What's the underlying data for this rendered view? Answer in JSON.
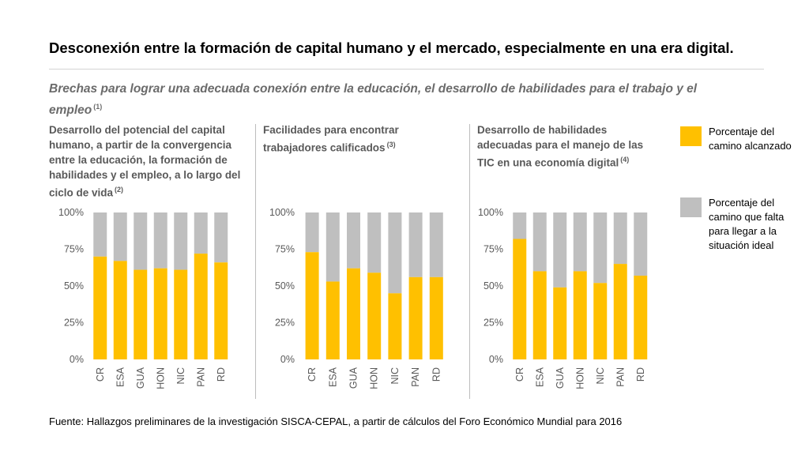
{
  "title": "Desconexión entre la formación de capital humano y el mercado, especialmente en una era digital.",
  "subtitle": "Brechas para lograr una adecuada conexión entre la educación, el desarrollo de habilidades para el trabajo y el empleo",
  "subtitle_note": "(1)",
  "legend": [
    {
      "label": "Porcentaje del camino alcanzado",
      "color": "#FFC000"
    },
    {
      "label": "Porcentaje del camino que falta para llegar a la situación ideal",
      "color": "#BFBFBF"
    }
  ],
  "source": "Fuente: Hallazgos preliminares de la investigación SISCA-CEPAL, a partir de cálculos del Foro Económico Mundial para 2016",
  "chart_data": [
    {
      "type": "bar",
      "stacked": true,
      "title": "Desarrollo del potencial del capital humano, a partir de la convergencia entre la educación, la formación de habilidades y el empleo, a lo largo del ciclo de vida",
      "note": "(2)",
      "categories": [
        "CR",
        "ESA",
        "GUA",
        "HON",
        "NIC",
        "PAN",
        "RD"
      ],
      "series": [
        {
          "name": "Porcentaje del camino alcanzado",
          "values": [
            70,
            67,
            61,
            62,
            61,
            72,
            66
          ]
        },
        {
          "name": "Porcentaje del camino que falta para llegar a la situación ideal",
          "values": [
            30,
            33,
            39,
            38,
            39,
            28,
            34
          ]
        }
      ],
      "yticks": [
        "0%",
        "25%",
        "50%",
        "75%",
        "100%"
      ],
      "ylim": [
        0,
        100
      ]
    },
    {
      "type": "bar",
      "stacked": true,
      "title": "Facilidades para encontrar trabajadores calificados",
      "note": "(3)",
      "categories": [
        "CR",
        "ESA",
        "GUA",
        "HON",
        "NIC",
        "PAN",
        "RD"
      ],
      "series": [
        {
          "name": "Porcentaje del camino alcanzado",
          "values": [
            73,
            53,
            62,
            59,
            45,
            56,
            56
          ]
        },
        {
          "name": "Porcentaje del camino que falta para llegar a la situación ideal",
          "values": [
            27,
            47,
            38,
            41,
            55,
            44,
            44
          ]
        }
      ],
      "yticks": [
        "0%",
        "25%",
        "50%",
        "75%",
        "100%"
      ],
      "ylim": [
        0,
        100
      ]
    },
    {
      "type": "bar",
      "stacked": true,
      "title": "Desarrollo de habilidades adecuadas para el manejo de las TIC en una economía digital",
      "note": "(4)",
      "categories": [
        "CR",
        "ESA",
        "GUA",
        "HON",
        "NIC",
        "PAN",
        "RD"
      ],
      "series": [
        {
          "name": "Porcentaje del camino alcanzado",
          "values": [
            82,
            60,
            49,
            60,
            52,
            65,
            57
          ]
        },
        {
          "name": "Porcentaje del camino que falta para llegar a la situación ideal",
          "values": [
            18,
            40,
            51,
            40,
            48,
            35,
            43
          ]
        }
      ],
      "yticks": [
        "0%",
        "25%",
        "50%",
        "75%",
        "100%"
      ],
      "ylim": [
        0,
        100
      ]
    }
  ]
}
